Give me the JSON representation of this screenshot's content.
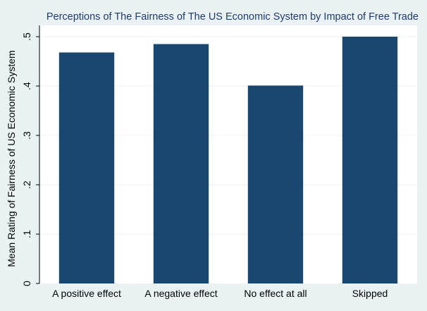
{
  "chart_data": {
    "type": "bar",
    "title": "Perceptions of The Fairness of The US Economic System by Impact of Free Trade",
    "xlabel": "",
    "ylabel": "Mean Rating of Fairness of US Economic System",
    "categories": [
      "A positive effect",
      "A negative effect",
      "No effect at all",
      "Skipped"
    ],
    "values": [
      0.468,
      0.485,
      0.401,
      0.5
    ],
    "ylim": [
      0,
      0.5
    ],
    "yticks": [
      0,
      0.1,
      0.2,
      0.3,
      0.4,
      0.5
    ],
    "ytick_labels": [
      "0",
      ".1",
      ".2",
      ".3",
      ".4",
      ".5"
    ],
    "grid": true,
    "bar_color": "#1a476f",
    "plot_background": "#ffffff",
    "grid_color": "#eaf2f3",
    "page_background": "#eaf2f3"
  }
}
